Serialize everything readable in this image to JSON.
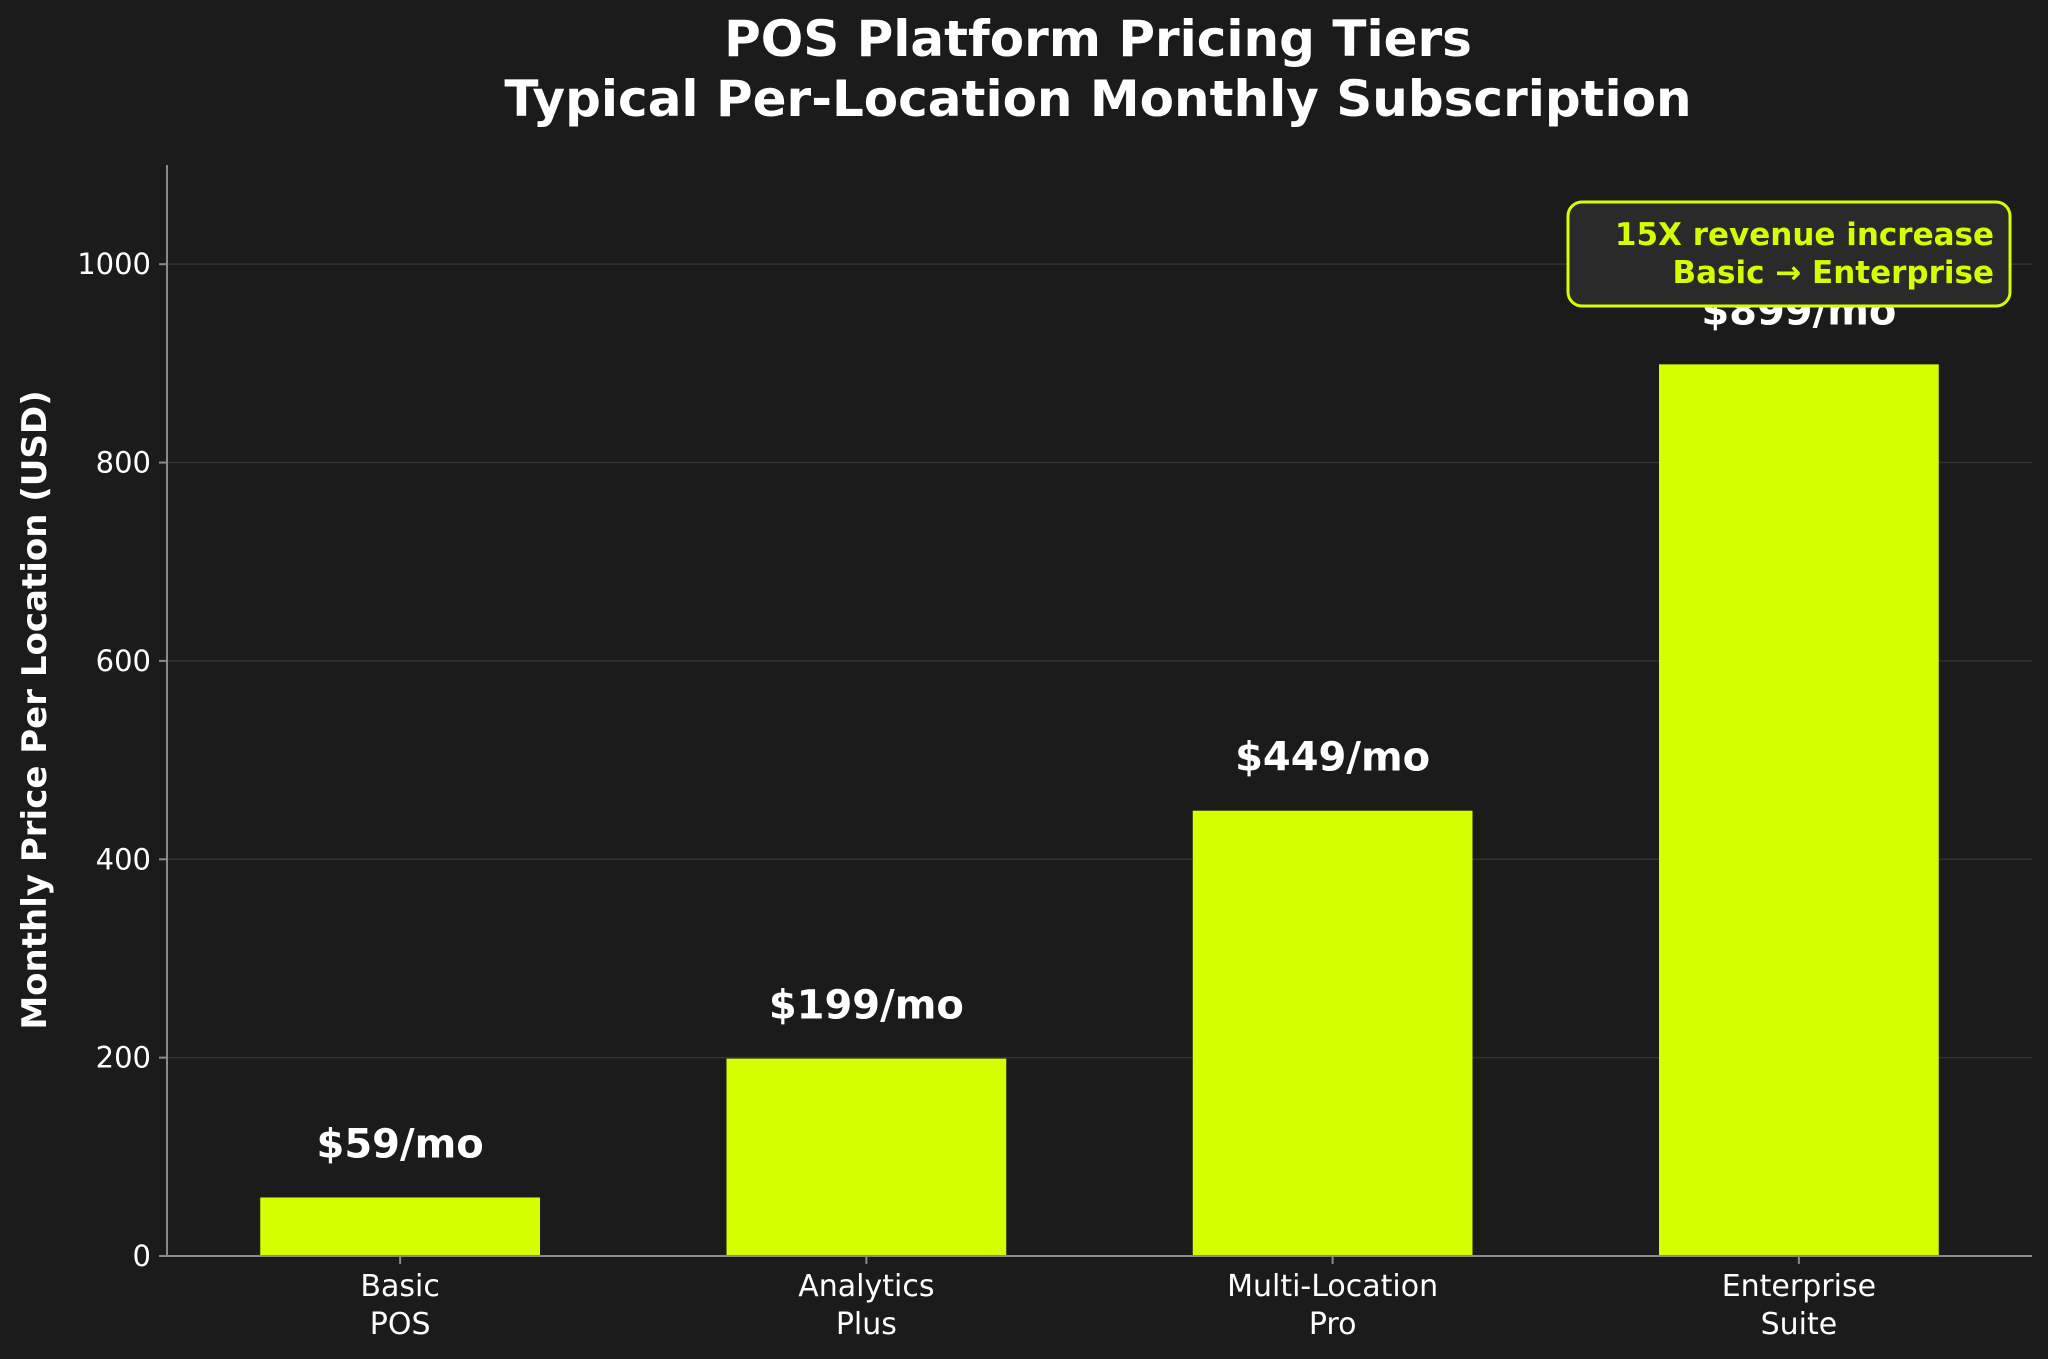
{
  "chart_data": {
    "type": "bar",
    "title_lines": [
      "POS Platform Pricing Tiers",
      "Typical Per-Location Monthly Subscription"
    ],
    "xlabel": "",
    "ylabel": "Monthly Price Per Location (USD)",
    "ylim": [
      0,
      1100
    ],
    "yticks": [
      0,
      200,
      400,
      600,
      800,
      1000
    ],
    "grid": true,
    "categories": [
      [
        "Basic",
        "POS"
      ],
      [
        "Analytics",
        "Plus"
      ],
      [
        "Multi-Location",
        "Pro"
      ],
      [
        "Enterprise",
        "Suite"
      ]
    ],
    "values": [
      59,
      199,
      449,
      899
    ],
    "data_labels": [
      "$59/mo",
      "$199/mo",
      "$449/mo",
      "$899/mo"
    ],
    "annotation_lines": [
      "15X revenue increase",
      "Basic → Enterprise"
    ],
    "colors": {
      "background": "#1b1b1b",
      "bar": "#d4ff00",
      "text": "#ffffff",
      "axis": "#8a8a8a",
      "grid": "#333333",
      "annotation_text": "#d4ff00",
      "annotation_border": "#d4ff00",
      "annotation_fill": "#2a2a2a"
    }
  }
}
